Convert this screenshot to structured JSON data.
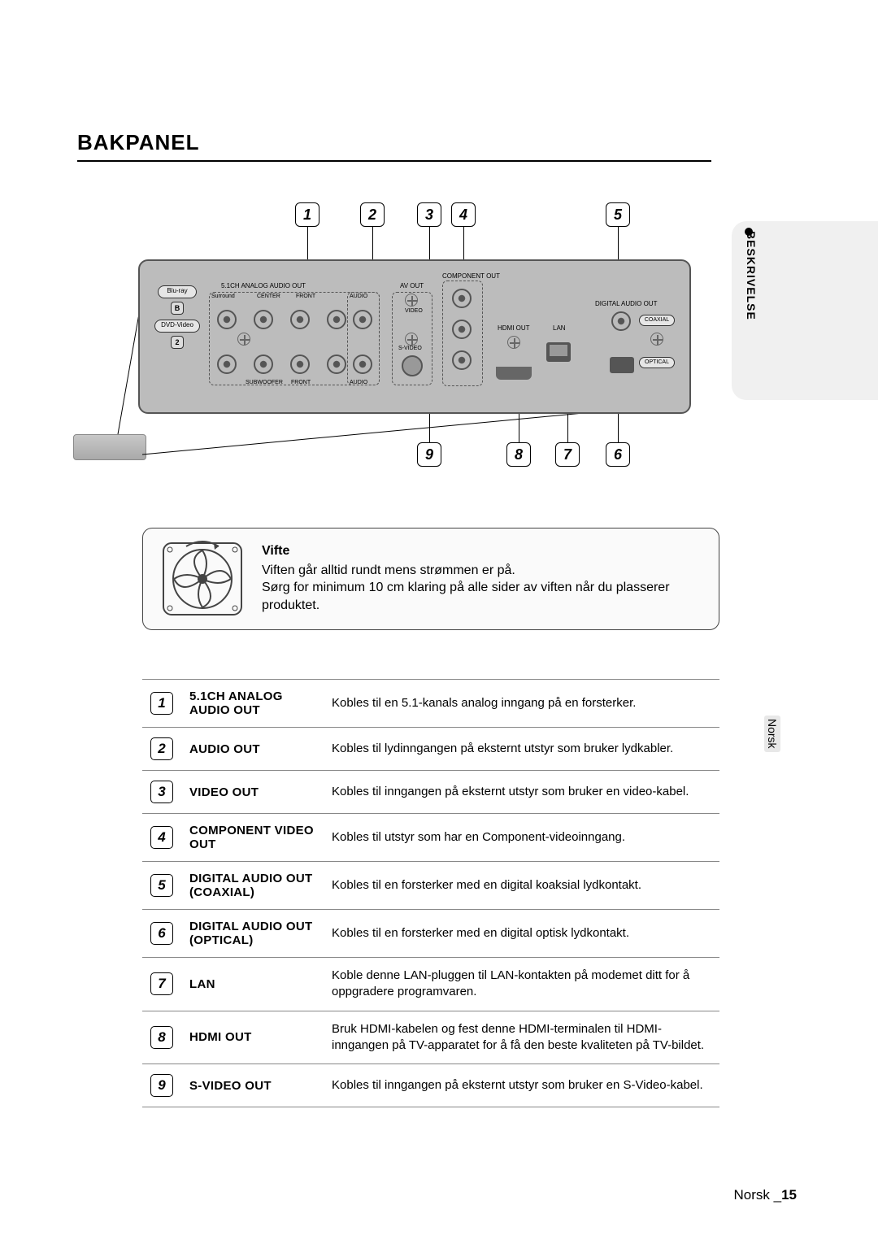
{
  "section_title": "BAKPANEL",
  "side_tab": "BESKRIVELSE",
  "side_lang": "Norsk",
  "footer": {
    "lang": "Norsk",
    "sep": " _",
    "page": "15"
  },
  "panel_labels": {
    "bluray": "Blu-ray",
    "dvd": "DVD-Video",
    "analog51": "5.1CH ANALOG AUDIO OUT",
    "surround_l": "Surround",
    "center": "CENTER",
    "front_l": "FRONT",
    "audio_l": "AUDIO",
    "subwoofer": "SUBWOOFER",
    "front_r": "FRONT",
    "audio_r": "AUDIO",
    "avout": "AV OUT",
    "video": "VIDEO",
    "svideo": "S-VIDEO",
    "component": "COMPONENT OUT",
    "hdmi": "HDMI OUT",
    "lan": "LAN",
    "digital": "DIGITAL AUDIO OUT",
    "coaxial": "COAXIAL",
    "optical": "OPTICAL"
  },
  "fan": {
    "title": "Vifte",
    "body1": "Viften går alltid rundt mens strømmen er på.",
    "body2": "Sørg for minimum 10 cm klaring på alle sider av viften når du plasserer produktet."
  },
  "rows": [
    {
      "num": "1",
      "name": "5.1CH ANALOG AUDIO OUT",
      "desc": "Kobles til en 5.1-kanals analog inngang på en forsterker."
    },
    {
      "num": "2",
      "name": "AUDIO OUT",
      "desc": "Kobles til lydinngangen på eksternt utstyr som bruker lydkabler."
    },
    {
      "num": "3",
      "name": "VIDEO OUT",
      "desc": "Kobles til inngangen på eksternt utstyr som bruker en video-kabel."
    },
    {
      "num": "4",
      "name": "COMPONENT VIDEO OUT",
      "desc": "Kobles til utstyr som har en Component-videoinngang."
    },
    {
      "num": "5",
      "name": "DIGITAL AUDIO OUT (COAXIAL)",
      "desc": "Kobles til en forsterker med en digital koaksial lydkontakt."
    },
    {
      "num": "6",
      "name": "DIGITAL AUDIO OUT (OPTICAL)",
      "desc": "Kobles til en forsterker med en digital optisk lydkontakt."
    },
    {
      "num": "7",
      "name": "LAN",
      "desc": "Koble denne LAN-pluggen til LAN-kontakten på modemet ditt for å oppgradere programvaren."
    },
    {
      "num": "8",
      "name": "HDMI OUT",
      "desc": "Bruk HDMI-kabelen og fest denne HDMI-terminalen til HDMI-inngangen på TV-apparatet for å få den beste kvaliteten på TV-bildet."
    },
    {
      "num": "9",
      "name": "S-VIDEO OUT",
      "desc": "Kobles til inngangen på eksternt utstyr som bruker en S-Video-kabel."
    }
  ]
}
